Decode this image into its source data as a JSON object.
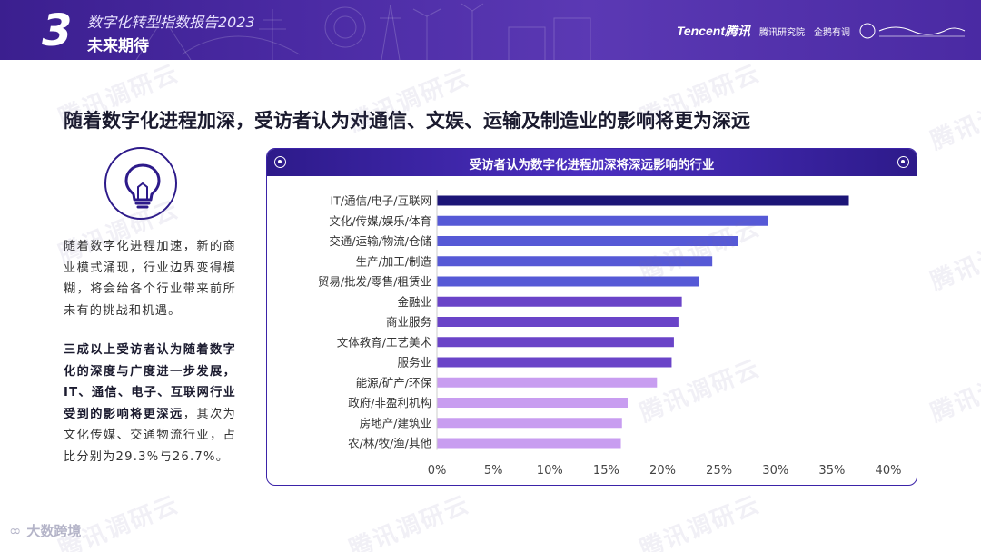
{
  "header": {
    "section_number": "3",
    "title": "数字化转型指数报告2023",
    "subtitle": "未来期待",
    "brands": [
      "Tencent腾讯",
      "腾讯研究院",
      "企鹅有调"
    ]
  },
  "headline": "随着数字化进程加深，受访者认为对通信、文娱、运输及制造业的影响将更为深远",
  "left_panel": {
    "icon": "lightbulb-icon",
    "paragraph1": "随着数字化进程加速，新的商业模式涌现，行业边界变得模糊，将会给各个行业带来前所未有的挑战和机遇。",
    "paragraph2_bold": "三成以上受访者认为随着数字化的深度与广度进一步发展，IT、通信、电子、互联网行业受到的影响将更深远",
    "paragraph2_rest": "，其次为文化传媒、交通物流行业，占比分别为29.3%与26.7%。"
  },
  "watermark_text": "腾讯调研云",
  "footer": {
    "logo_text": "大数跨境"
  },
  "colors": {
    "dark_navy": "#1c1577",
    "blue": "#5659d6",
    "purple": "#6a44c8",
    "light_purple": "#c89df0"
  },
  "chart_data": {
    "type": "bar",
    "orientation": "horizontal",
    "title": "受访者认为数字化进程加深将深远影响的行业",
    "categories": [
      "IT/通信/电子/互联网",
      "文化/传媒/娱乐/体育",
      "交通/运输/物流/仓储",
      "生产/加工/制造",
      "贸易/批发/零售/租赁业",
      "金融业",
      "商业服务",
      "文体教育/工艺美术",
      "服务业",
      "能源/矿产/环保",
      "政府/非盈利机构",
      "房地产/建筑业",
      "农/林/牧/渔/其他"
    ],
    "values": [
      36.5,
      29.3,
      26.7,
      24.4,
      23.2,
      21.7,
      21.4,
      21.0,
      20.8,
      19.5,
      16.9,
      16.4,
      16.3
    ],
    "bar_colors": [
      "#1c1577",
      "#5659d6",
      "#5659d6",
      "#5659d6",
      "#5659d6",
      "#6a44c8",
      "#6a44c8",
      "#6a44c8",
      "#6a44c8",
      "#c89df0",
      "#c89df0",
      "#c89df0",
      "#c89df0"
    ],
    "xlim": [
      0,
      40
    ],
    "xticks": [
      "0%",
      "5%",
      "10%",
      "15%",
      "20%",
      "25%",
      "30%",
      "35%",
      "40%"
    ],
    "xlabel": "",
    "ylabel": "",
    "grid": false,
    "legend": "none"
  }
}
